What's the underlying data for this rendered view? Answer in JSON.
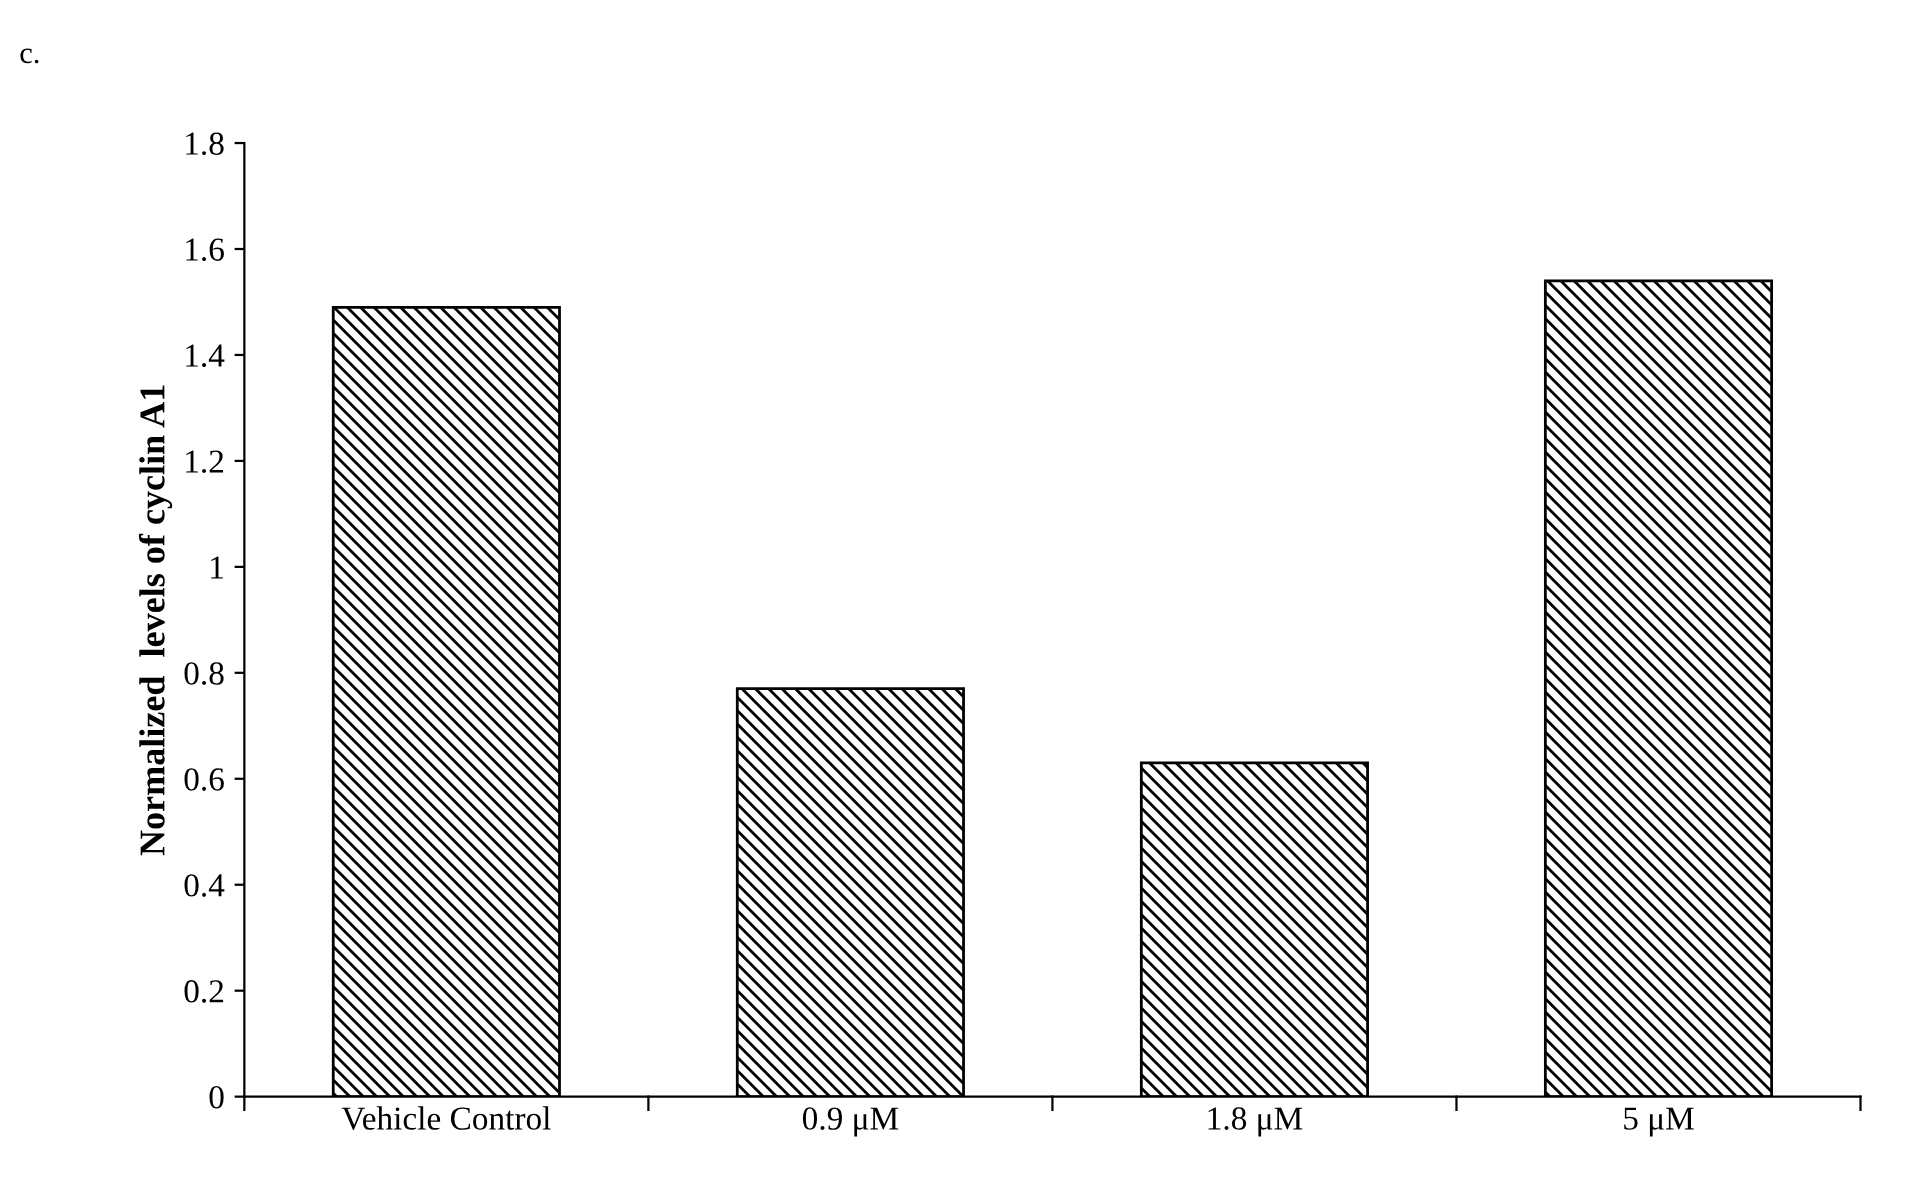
{
  "chart_data": {
    "type": "bar",
    "ylabel": "Normalized  levels of cyclin A1",
    "annotations": [
      "c."
    ],
    "categories": [
      "Vehicle Control",
      "0.9 μM",
      "1.8 μM",
      "5 μM"
    ],
    "values": [
      1.49,
      0.77,
      0.63,
      1.54
    ],
    "color": "#000000",
    "ylim": [
      0,
      1.8
    ],
    "yticks": [
      0,
      0.2,
      0.4,
      0.6,
      0.8,
      1,
      1.2,
      1.4,
      1.6,
      1.8
    ],
    "grid": false
  }
}
